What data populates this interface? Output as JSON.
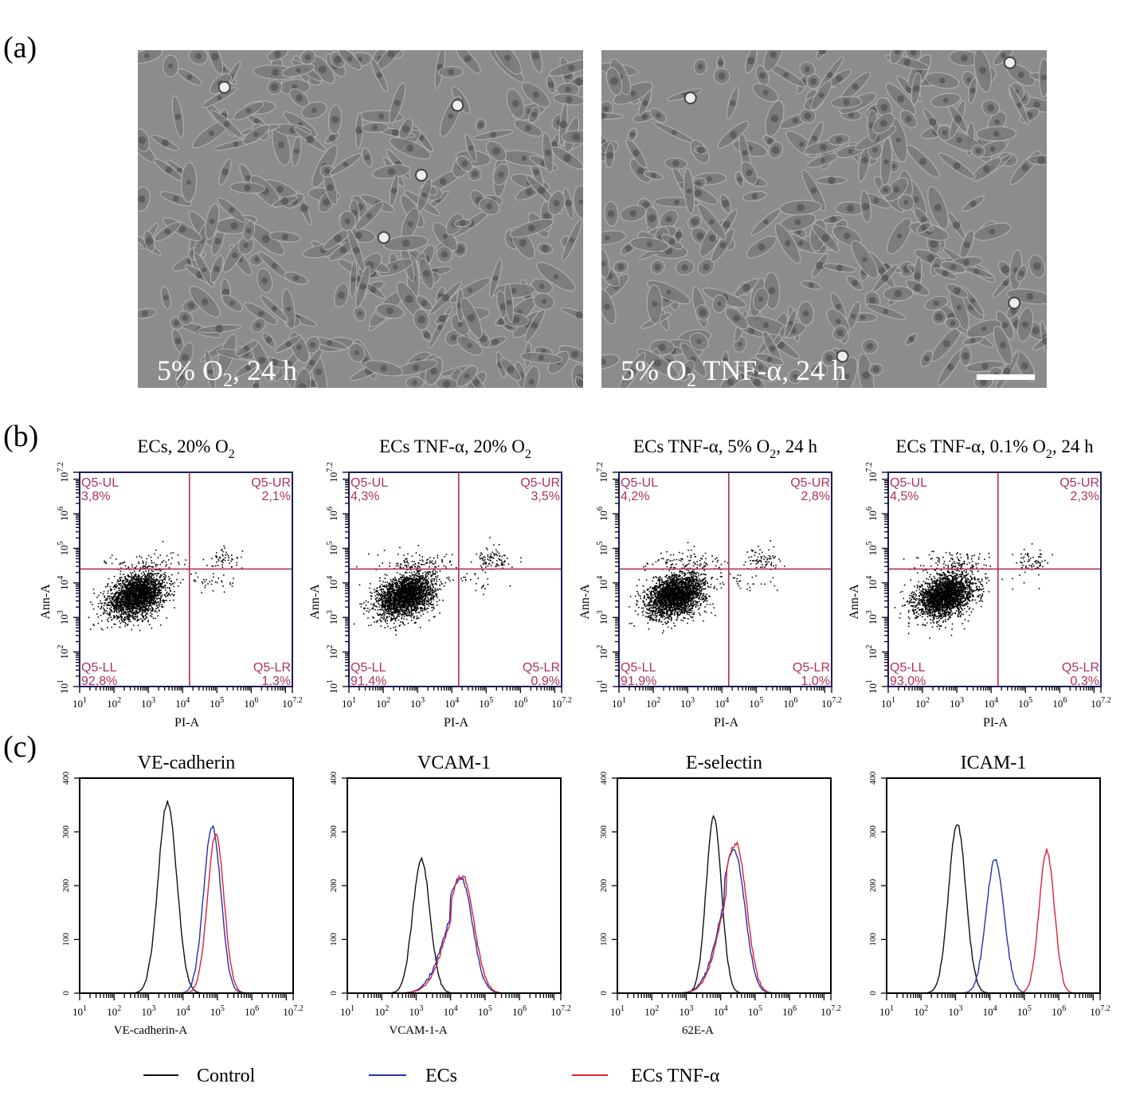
{
  "panel_labels": [
    "(a)",
    "(b)",
    "(c)"
  ],
  "micrographs": [
    {
      "label_pre": "5% O",
      "label_sub": "2",
      "label_post": ", 24 h",
      "scale_bar": false
    },
    {
      "label_pre": "5% O",
      "label_sub": "2",
      "label_post": " TNF-α, 24 h",
      "scale_bar": true
    }
  ],
  "colors": {
    "control": "#111111",
    "ecs": "#2233aa",
    "ecs_tnf": "#dd2233",
    "gate": "#b0305a",
    "frame": "#1a1a60",
    "micrograph_bg": "#8c8c8c"
  },
  "chart_data": [
    {
      "type": "scatter",
      "panel": "(b)",
      "x_scale": "log",
      "y_scale": "log",
      "xlim": [
        "10^1",
        "10^7.2"
      ],
      "ylim": [
        "10^1",
        "10^7.2"
      ],
      "tick_exponents": [
        "1",
        "2",
        "3",
        "4",
        "5",
        "6",
        "7.2"
      ],
      "gate_x_log10": 4.2,
      "gate_y_log10": 4.4,
      "plots": [
        {
          "title_pre": "ECs, 20% O",
          "title_sub": "2",
          "title_post": "",
          "xlabel": "PI-A",
          "ylabel": "Ann-A",
          "quadrants": {
            "UL": {
              "name": "Q5-UL",
              "value": "3,8%"
            },
            "UR": {
              "name": "Q5-UR",
              "value": "2,1%"
            },
            "LL": {
              "name": "Q5-LL",
              "value": "92,8%"
            },
            "LR": {
              "name": "Q5-LR",
              "value": "1,3%"
            }
          }
        },
        {
          "title_pre": "ECs TNF-α, 20% O",
          "title_sub": "2",
          "title_post": "",
          "xlabel": "PI-A",
          "ylabel": "Ann-A",
          "quadrants": {
            "UL": {
              "name": "Q5-UL",
              "value": "4,3%"
            },
            "UR": {
              "name": "Q5-UR",
              "value": "3,5%"
            },
            "LL": {
              "name": "Q5-LL",
              "value": "91,4%"
            },
            "LR": {
              "name": "Q5-LR",
              "value": "0,9%"
            }
          }
        },
        {
          "title_pre": "ECs TNF-α, 5% O",
          "title_sub": "2",
          "title_post": ", 24 h",
          "xlabel": "PI-A",
          "ylabel": "Ann-A",
          "quadrants": {
            "UL": {
              "name": "Q5-UL",
              "value": "4,2%"
            },
            "UR": {
              "name": "Q5-UR",
              "value": "2,8%"
            },
            "LL": {
              "name": "Q5-LL",
              "value": "91,9%"
            },
            "LR": {
              "name": "Q5-LR",
              "value": "1,0%"
            }
          }
        },
        {
          "title_pre": "ECs TNF-α, 0.1% O",
          "title_sub": "2",
          "title_post": ", 24 h",
          "xlabel": "PI-A",
          "ylabel": "Ann-A",
          "quadrants": {
            "UL": {
              "name": "Q5-UL",
              "value": "4,5%"
            },
            "UR": {
              "name": "Q5-UR",
              "value": "2,3%"
            },
            "LL": {
              "name": "Q5-LL",
              "value": "93,0%"
            },
            "LR": {
              "name": "Q5-LR",
              "value": "0,3%"
            }
          }
        }
      ]
    },
    {
      "type": "line",
      "subtype": "histogram",
      "panel": "(c)",
      "x_scale": "log",
      "xlim": [
        "10^1",
        "10^7.2"
      ],
      "ylim": [
        0,
        400
      ],
      "x_tick_exponents": [
        "1",
        "2",
        "3",
        "4",
        "5",
        "6",
        "7.2"
      ],
      "y_ticks": [
        "0",
        "100",
        "200",
        "300",
        "400"
      ],
      "legend": {
        "placement": "bottom",
        "entries": [
          "Control",
          "ECs",
          "ECs TNF-α"
        ]
      },
      "plots": [
        {
          "title": "VE-cadherin",
          "xlabel": "VE-cadherin-A",
          "series": [
            {
              "name": "Control",
              "peak_log10": 3.55,
              "peak_count": 355,
              "sd_decades": 0.27
            },
            {
              "name": "ECs",
              "peak_log10": 4.85,
              "peak_count": 310,
              "sd_decades": 0.25
            },
            {
              "name": "ECs TNF-α",
              "peak_log10": 4.95,
              "peak_count": 295,
              "sd_decades": 0.24
            }
          ]
        },
        {
          "title": "VCAM-1",
          "xlabel": "VCAM-1-A",
          "series": [
            {
              "name": "Control",
              "peak_log10": 3.15,
              "peak_count": 250,
              "sd_decades": 0.25
            },
            {
              "name": "ECs",
              "peak_log10": 4.3,
              "peak_count": 215,
              "sd_decades": 0.33
            },
            {
              "name": "ECs TNF-α",
              "peak_log10": 4.35,
              "peak_count": 218,
              "sd_decades": 0.33
            }
          ]
        },
        {
          "title": "E-selectin",
          "xlabel": "62E-A",
          "series": [
            {
              "name": "Control",
              "peak_log10": 3.8,
              "peak_count": 330,
              "sd_decades": 0.22
            },
            {
              "name": "ECs",
              "peak_log10": 4.4,
              "peak_count": 265,
              "sd_decades": 0.3
            },
            {
              "name": "ECs TNF-α",
              "peak_log10": 4.45,
              "peak_count": 278,
              "sd_decades": 0.3
            }
          ]
        },
        {
          "title": "ICAM-1",
          "xlabel": "",
          "series": [
            {
              "name": "Control",
              "peak_log10": 3.05,
              "peak_count": 315,
              "sd_decades": 0.25
            },
            {
              "name": "ECs",
              "peak_log10": 4.15,
              "peak_count": 250,
              "sd_decades": 0.26
            },
            {
              "name": "ECs TNF-α",
              "peak_log10": 5.65,
              "peak_count": 265,
              "sd_decades": 0.22
            }
          ]
        }
      ]
    }
  ]
}
